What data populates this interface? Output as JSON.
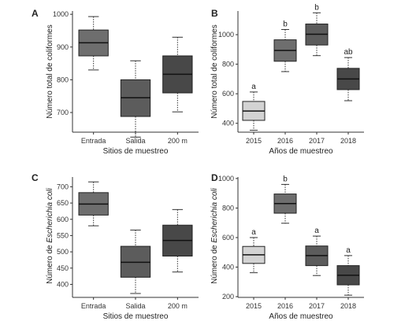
{
  "chart_data": [
    {
      "type": "box",
      "panel": "A",
      "xlabel": "Sitios de muestreo",
      "ylabel": "Número total de coliformes",
      "ylabel_italic": "",
      "ylabel_suffix": "",
      "ylim": [
        640,
        1010
      ],
      "yticks": [
        700,
        800,
        900,
        1000
      ],
      "categories": [
        "Entrada",
        "Salida",
        "200 m"
      ],
      "boxes": [
        {
          "min": 830,
          "q1": 873,
          "median": 913,
          "q3": 952,
          "max": 993,
          "fill": "#6e6e6e"
        },
        {
          "min": 625,
          "q1": 688,
          "median": 745,
          "q3": 800,
          "max": 858,
          "fill": "#5c5c5c"
        },
        {
          "min": 702,
          "q1": 760,
          "median": 817,
          "q3": 873,
          "max": 930,
          "fill": "#484848"
        }
      ],
      "sig_labels": []
    },
    {
      "type": "box",
      "panel": "B",
      "xlabel": "Años de muestreo",
      "ylabel": "Número total de coliformes",
      "ylabel_italic": "",
      "ylabel_suffix": "",
      "ylim": [
        340,
        1160
      ],
      "yticks": [
        400,
        600,
        800,
        1000
      ],
      "categories": [
        "2015",
        "2016",
        "2017",
        "2018"
      ],
      "boxes": [
        {
          "min": 353,
          "q1": 420,
          "median": 483,
          "q3": 548,
          "max": 612,
          "fill": "#d3d3d3"
        },
        {
          "min": 750,
          "q1": 820,
          "median": 893,
          "q3": 965,
          "max": 1035,
          "fill": "#6e6e6e"
        },
        {
          "min": 858,
          "q1": 930,
          "median": 1003,
          "q3": 1072,
          "max": 1148,
          "fill": "#5c5c5c"
        },
        {
          "min": 553,
          "q1": 628,
          "median": 700,
          "q3": 772,
          "max": 845,
          "fill": "#484848"
        }
      ],
      "sig_labels": [
        "a",
        "b",
        "b",
        "ab"
      ]
    },
    {
      "type": "box",
      "panel": "C",
      "xlabel": "Sitios de muestreo",
      "ylabel": "Número de ",
      "ylabel_italic": "Escherichia coli",
      "ylabel_suffix": "",
      "ylim": [
        360,
        730
      ],
      "yticks": [
        400,
        450,
        500,
        550,
        600,
        650,
        700
      ],
      "categories": [
        "Entrada",
        "Salida",
        "200 m"
      ],
      "boxes": [
        {
          "min": 580,
          "q1": 613,
          "median": 647,
          "q3": 682,
          "max": 715,
          "fill": "#6e6e6e"
        },
        {
          "min": 372,
          "q1": 422,
          "median": 468,
          "q3": 517,
          "max": 567,
          "fill": "#5c5c5c"
        },
        {
          "min": 438,
          "q1": 487,
          "median": 535,
          "q3": 582,
          "max": 630,
          "fill": "#484848"
        }
      ],
      "sig_labels": []
    },
    {
      "type": "box",
      "panel": "D",
      "xlabel": "Años de muestreo",
      "ylabel": "Número de ",
      "ylabel_italic": "Escherichia coli",
      "ylabel_suffix": "",
      "ylim": [
        195,
        1010
      ],
      "yticks": [
        200,
        400,
        600,
        800,
        1000
      ],
      "categories": [
        "2015",
        "2016",
        "2017",
        "2018"
      ],
      "boxes": [
        {
          "min": 362,
          "q1": 425,
          "median": 483,
          "q3": 540,
          "max": 600,
          "fill": "#d3d3d3"
        },
        {
          "min": 697,
          "q1": 765,
          "median": 830,
          "q3": 895,
          "max": 960,
          "fill": "#6e6e6e"
        },
        {
          "min": 343,
          "q1": 410,
          "median": 478,
          "q3": 543,
          "max": 610,
          "fill": "#5c5c5c"
        },
        {
          "min": 210,
          "q1": 280,
          "median": 345,
          "q3": 410,
          "max": 478,
          "fill": "#484848"
        }
      ],
      "sig_labels": [
        "a",
        "b",
        "a",
        "a"
      ]
    }
  ]
}
